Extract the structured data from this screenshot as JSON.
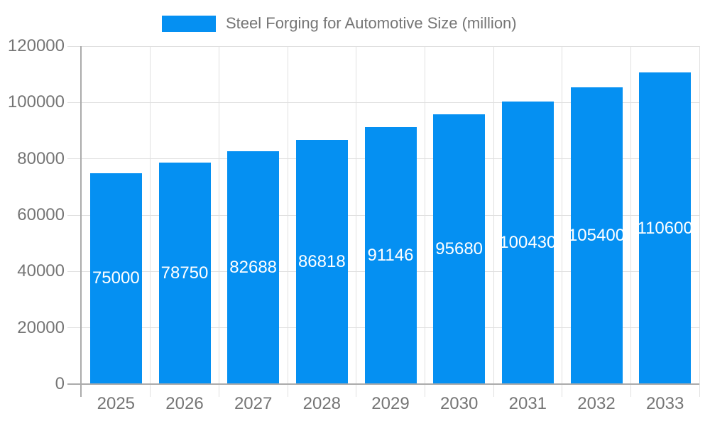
{
  "legend": {
    "label": "Steel Forging for Automotive Size (million)"
  },
  "chart_data": {
    "type": "bar",
    "title": "Steel Forging for Automotive Size (million)",
    "categories": [
      "2025",
      "2026",
      "2027",
      "2028",
      "2029",
      "2030",
      "2031",
      "2032",
      "2033"
    ],
    "values": [
      75000,
      78750,
      82688,
      86818,
      91146,
      95680,
      100430,
      105400,
      110600
    ],
    "xlabel": "",
    "ylabel": "",
    "ylim": [
      0,
      120000
    ],
    "y_ticks": [
      0,
      20000,
      40000,
      60000,
      80000,
      100000,
      120000
    ],
    "grid": true,
    "legend_position": "top",
    "value_labels": "inside-center",
    "colors": {
      "bar": "#0590f2",
      "axis_text": "#757575",
      "value_label": "#ffffff",
      "grid_line": "#e0e0e0",
      "axis_line": "#ababab",
      "background": "#ffffff"
    }
  }
}
